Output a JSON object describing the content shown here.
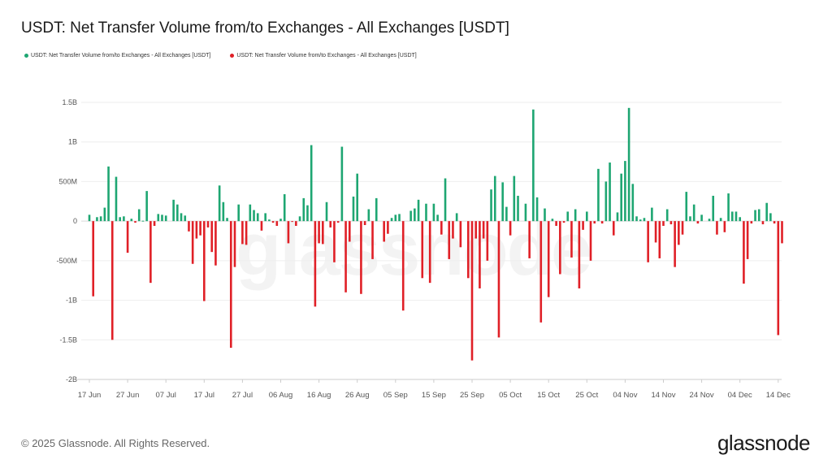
{
  "header": {
    "title": "USDT: Net Transfer Volume from/to Exchanges - All Exchanges [USDT]"
  },
  "legend": [
    {
      "label": "USDT: Net Transfer Volume from/to Exchanges - All Exchanges [USDT]",
      "color": "#1ea672"
    },
    {
      "label": "USDT: Net Transfer Volume from/to Exchanges - All Exchanges [USDT]",
      "color": "#e02027"
    }
  ],
  "footer": {
    "copyright": "© 2025 Glassnode. All Rights Reserved.",
    "logo": "glassnode",
    "watermark": "glassnode"
  },
  "chart_data": {
    "type": "bar",
    "title": "USDT: Net Transfer Volume from/to Exchanges - All Exchanges [USDT]",
    "xlabel": "",
    "ylabel": "",
    "unit": "USDT (millions)",
    "ylim": [
      -2000,
      1500
    ],
    "y_ticks": [
      {
        "v": 1500,
        "label": "1.5B"
      },
      {
        "v": 1000,
        "label": "1B"
      },
      {
        "v": 500,
        "label": "500M"
      },
      {
        "v": 0,
        "label": "0"
      },
      {
        "v": -500,
        "label": "-500M"
      },
      {
        "v": -1000,
        "label": "-1B"
      },
      {
        "v": -1500,
        "label": "-1.5B"
      },
      {
        "v": -2000,
        "label": "-2B"
      }
    ],
    "x_ticks": [
      "17 Jun",
      "27 Jun",
      "07 Jul",
      "17 Jul",
      "27 Jul",
      "06 Aug",
      "16 Aug",
      "26 Aug",
      "05 Sep",
      "15 Sep",
      "25 Sep",
      "05 Oct",
      "15 Oct",
      "25 Oct",
      "04 Nov",
      "14 Nov",
      "24 Nov",
      "04 Dec",
      "14 Dec"
    ],
    "grid": true,
    "legend_position": "top-left",
    "positive_color": "#1ea672",
    "negative_color": "#e02027",
    "x": [
      "17 Jun",
      "18 Jun",
      "19 Jun",
      "20 Jun",
      "21 Jun",
      "22 Jun",
      "23 Jun",
      "24 Jun",
      "25 Jun",
      "26 Jun",
      "27 Jun",
      "28 Jun",
      "29 Jun",
      "30 Jun",
      "01 Jul",
      "02 Jul",
      "03 Jul",
      "04 Jul",
      "05 Jul",
      "06 Jul",
      "07 Jul",
      "08 Jul",
      "09 Jul",
      "10 Jul",
      "11 Jul",
      "12 Jul",
      "13 Jul",
      "14 Jul",
      "15 Jul",
      "16 Jul",
      "17 Jul",
      "18 Jul",
      "19 Jul",
      "20 Jul",
      "21 Jul",
      "22 Jul",
      "23 Jul",
      "24 Jul",
      "25 Jul",
      "26 Jul",
      "27 Jul",
      "28 Jul",
      "29 Jul",
      "30 Jul",
      "31 Jul",
      "01 Aug",
      "02 Aug",
      "03 Aug",
      "04 Aug",
      "05 Aug",
      "06 Aug",
      "07 Aug",
      "08 Aug",
      "09 Aug",
      "10 Aug",
      "11 Aug",
      "12 Aug",
      "13 Aug",
      "14 Aug",
      "15 Aug",
      "16 Aug",
      "17 Aug",
      "18 Aug",
      "19 Aug",
      "20 Aug",
      "21 Aug",
      "22 Aug",
      "23 Aug",
      "24 Aug",
      "25 Aug",
      "26 Aug",
      "27 Aug",
      "28 Aug",
      "29 Aug",
      "30 Aug",
      "31 Aug",
      "01 Sep",
      "02 Sep",
      "03 Sep",
      "04 Sep",
      "05 Sep",
      "06 Sep",
      "07 Sep",
      "08 Sep",
      "09 Sep",
      "10 Sep",
      "11 Sep",
      "12 Sep",
      "13 Sep",
      "14 Sep",
      "15 Sep",
      "16 Sep",
      "17 Sep",
      "18 Sep",
      "19 Sep",
      "20 Sep",
      "21 Sep",
      "22 Sep",
      "23 Sep",
      "24 Sep",
      "25 Sep",
      "26 Sep",
      "27 Sep",
      "28 Sep",
      "29 Sep",
      "30 Sep",
      "01 Oct",
      "02 Oct",
      "03 Oct",
      "04 Oct",
      "05 Oct",
      "06 Oct",
      "07 Oct",
      "08 Oct",
      "09 Oct",
      "10 Oct",
      "11 Oct",
      "12 Oct",
      "13 Oct",
      "14 Oct",
      "15 Oct",
      "16 Oct",
      "17 Oct",
      "18 Oct",
      "19 Oct",
      "20 Oct",
      "21 Oct",
      "22 Oct",
      "23 Oct",
      "24 Oct",
      "25 Oct",
      "26 Oct",
      "27 Oct",
      "28 Oct",
      "29 Oct",
      "30 Oct",
      "31 Oct",
      "01 Nov",
      "02 Nov",
      "03 Nov",
      "04 Nov",
      "05 Nov",
      "06 Nov",
      "07 Nov",
      "08 Nov",
      "09 Nov",
      "10 Nov",
      "11 Nov",
      "12 Nov",
      "13 Nov",
      "14 Nov",
      "15 Nov",
      "16 Nov",
      "17 Nov",
      "18 Nov",
      "19 Nov",
      "20 Nov",
      "21 Nov",
      "22 Nov",
      "23 Nov",
      "24 Nov",
      "25 Nov",
      "26 Nov",
      "27 Nov",
      "28 Nov",
      "29 Nov",
      "30 Nov",
      "01 Dec",
      "02 Dec",
      "03 Dec",
      "04 Dec",
      "05 Dec",
      "06 Dec",
      "07 Dec",
      "08 Dec",
      "09 Dec",
      "10 Dec",
      "11 Dec",
      "12 Dec",
      "13 Dec",
      "14 Dec",
      "15 Dec"
    ],
    "values": [
      80,
      -950,
      50,
      60,
      170,
      690,
      -1500,
      560,
      50,
      60,
      -400,
      30,
      -20,
      150,
      5,
      380,
      -780,
      -60,
      90,
      80,
      70,
      0,
      270,
      210,
      100,
      70,
      -130,
      -540,
      -220,
      -180,
      -1010,
      -80,
      -390,
      -560,
      450,
      240,
      40,
      -1600,
      -580,
      210,
      -290,
      -300,
      210,
      140,
      100,
      -120,
      100,
      20,
      -20,
      -60,
      30,
      340,
      -280,
      -10,
      -60,
      60,
      290,
      200,
      960,
      -1080,
      -280,
      -290,
      240,
      -80,
      -520,
      -20,
      940,
      -900,
      -260,
      310,
      600,
      -920,
      -50,
      150,
      -480,
      290,
      0,
      -260,
      -160,
      40,
      80,
      90,
      -1130,
      0,
      130,
      160,
      270,
      -720,
      220,
      -780,
      220,
      80,
      -170,
      540,
      -480,
      -220,
      100,
      -330,
      0,
      -720,
      -1760,
      -220,
      -850,
      -220,
      -500,
      400,
      570,
      -1470,
      490,
      180,
      -180,
      570,
      320,
      0,
      220,
      -470,
      1410,
      300,
      -1280,
      160,
      -960,
      30,
      -60,
      -670,
      -20,
      120,
      -460,
      150,
      -850,
      -110,
      120,
      -500,
      -30,
      660,
      -30,
      500,
      740,
      -180,
      110,
      600,
      760,
      1430,
      470,
      60,
      20,
      40,
      -520,
      170,
      -270,
      -470,
      -60,
      150,
      -40,
      -580,
      -300,
      -170,
      370,
      60,
      210,
      -30,
      80,
      0,
      30,
      320,
      -170,
      40,
      -140,
      350,
      120,
      120,
      50,
      -790,
      -480,
      -30,
      140,
      150,
      -40,
      230,
      100,
      -30,
      -1440,
      -280
    ]
  }
}
